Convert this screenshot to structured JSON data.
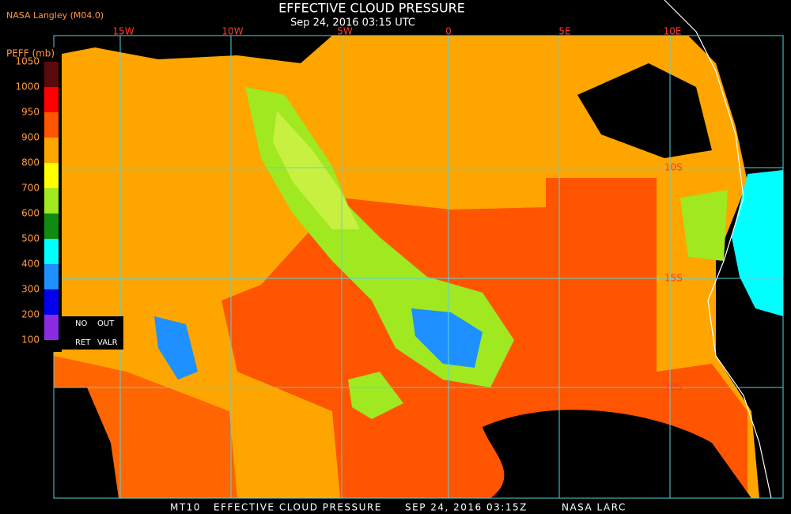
{
  "header": {
    "title": "EFFECTIVE CLOUD PRESSURE",
    "subtitle": "Sep 24, 2016 03:15 UTC",
    "source": "NASA Langley (M04.0)"
  },
  "legend": {
    "label": "PEFF (mb)",
    "ticks": [
      1050,
      1000,
      950,
      900,
      800,
      700,
      600,
      500,
      400,
      300,
      200,
      100
    ],
    "colors": [
      "#5a0a0a",
      "#ff0000",
      "#ff5500",
      "#ffa500",
      "#ffff00",
      "#a0e820",
      "#108a10",
      "#00ffff",
      "#1e90ff",
      "#0000ee",
      "#8a2be2"
    ],
    "no_retrieval": [
      "NO",
      "OUT",
      "RET",
      "VALR"
    ]
  },
  "map": {
    "lon_labels": [
      "15W",
      "10W",
      "5W",
      "0",
      "5E",
      "10E"
    ],
    "lat_labels": [
      "10S",
      "15S",
      "20S"
    ]
  },
  "footer": [
    "MT10",
    "EFFECTIVE CLOUD PRESSURE",
    "SEP 24, 2016 03:15Z",
    "NASA LARC"
  ]
}
